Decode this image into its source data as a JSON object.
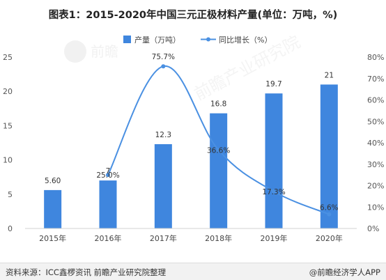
{
  "title": "图表1：2015-2020年中国三元正极材料产量(单位：万吨，%)",
  "source": "资料来源：ICC鑫椤资讯 前瞻产业研究院整理",
  "credit": "@前瞻经济学人APP",
  "watermark": "前瞻",
  "watermark2": "前瞻产业研究院",
  "colors": {
    "bar": "#3f86de",
    "line": "#4a90e2",
    "axis": "#d0d0d0"
  },
  "chart_data": {
    "type": "bar",
    "categories": [
      "2015年",
      "2016年",
      "2017年",
      "2018年",
      "2019年",
      "2020年"
    ],
    "series": [
      {
        "name": "产量（万吨）",
        "type": "bar",
        "axis": "left",
        "values": [
          5.6,
          7,
          12.3,
          16.8,
          19.7,
          21
        ],
        "labels": [
          "5.60",
          "7",
          "12.3",
          "16.8",
          "19.7",
          "21"
        ]
      },
      {
        "name": "同比增长（%）",
        "type": "line",
        "axis": "right",
        "values": [
          null,
          25.0,
          75.7,
          36.6,
          17.3,
          6.6
        ],
        "labels": [
          "",
          "25.0%",
          "75.7%",
          "36.6%",
          "17.3%",
          "6.6%"
        ]
      }
    ],
    "y_left": {
      "lim": [
        0,
        25
      ],
      "ticks": [
        0,
        5,
        10,
        15,
        20,
        25
      ]
    },
    "y_right": {
      "lim": [
        0,
        80
      ],
      "ticks": [
        "0%",
        "10%",
        "20%",
        "30%",
        "40%",
        "50%",
        "60%",
        "70%",
        "80%"
      ]
    },
    "grid": false,
    "legend": "top-center"
  }
}
